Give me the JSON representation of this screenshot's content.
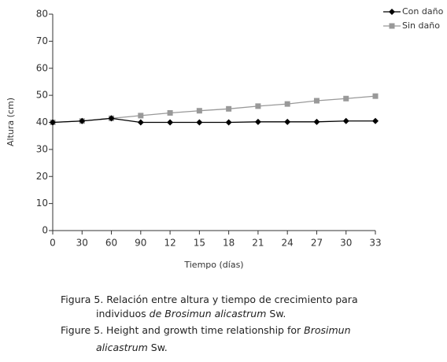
{
  "chart_data": {
    "type": "line",
    "xlabel": "Tiempo (días)",
    "ylabel": "Altura (cm)",
    "categories": [
      "0",
      "30",
      "60",
      "90",
      "12",
      "15",
      "18",
      "21",
      "24",
      "27",
      "30",
      "33"
    ],
    "series": [
      {
        "name": "Con daño",
        "color": "#000000",
        "marker": "diamond",
        "values": [
          40,
          40.5,
          41.5,
          40,
          40,
          40,
          40,
          40.2,
          40.2,
          40.2,
          40.5,
          40.5
        ]
      },
      {
        "name": "Sin daño",
        "color": "#999999",
        "marker": "square",
        "values": [
          40,
          40.5,
          41.5,
          42.5,
          43.5,
          44.3,
          45,
          46,
          46.8,
          48,
          48.8,
          49.7
        ]
      }
    ],
    "ylim": [
      0,
      80
    ],
    "yticks": [
      0,
      10,
      20,
      30,
      40,
      50,
      60,
      70,
      80
    ],
    "grid": false,
    "legend": "upper right"
  },
  "caption": [
    [
      {
        "text": "Figura 5. Relación entre altura y tiempo de crecimiento para"
      }
    ],
    [
      {
        "text": "individuos "
      },
      {
        "text": "de Brosimun alicastrum",
        "italic": true
      },
      {
        "text": " Sw."
      }
    ],
    [
      {
        "text": "Figure 5. Height and growth time relationship for "
      },
      {
        "text": "Brosimun",
        "italic": true
      }
    ],
    [
      {
        "text": "alicastrum",
        "italic": true
      },
      {
        "text": " Sw."
      }
    ]
  ]
}
